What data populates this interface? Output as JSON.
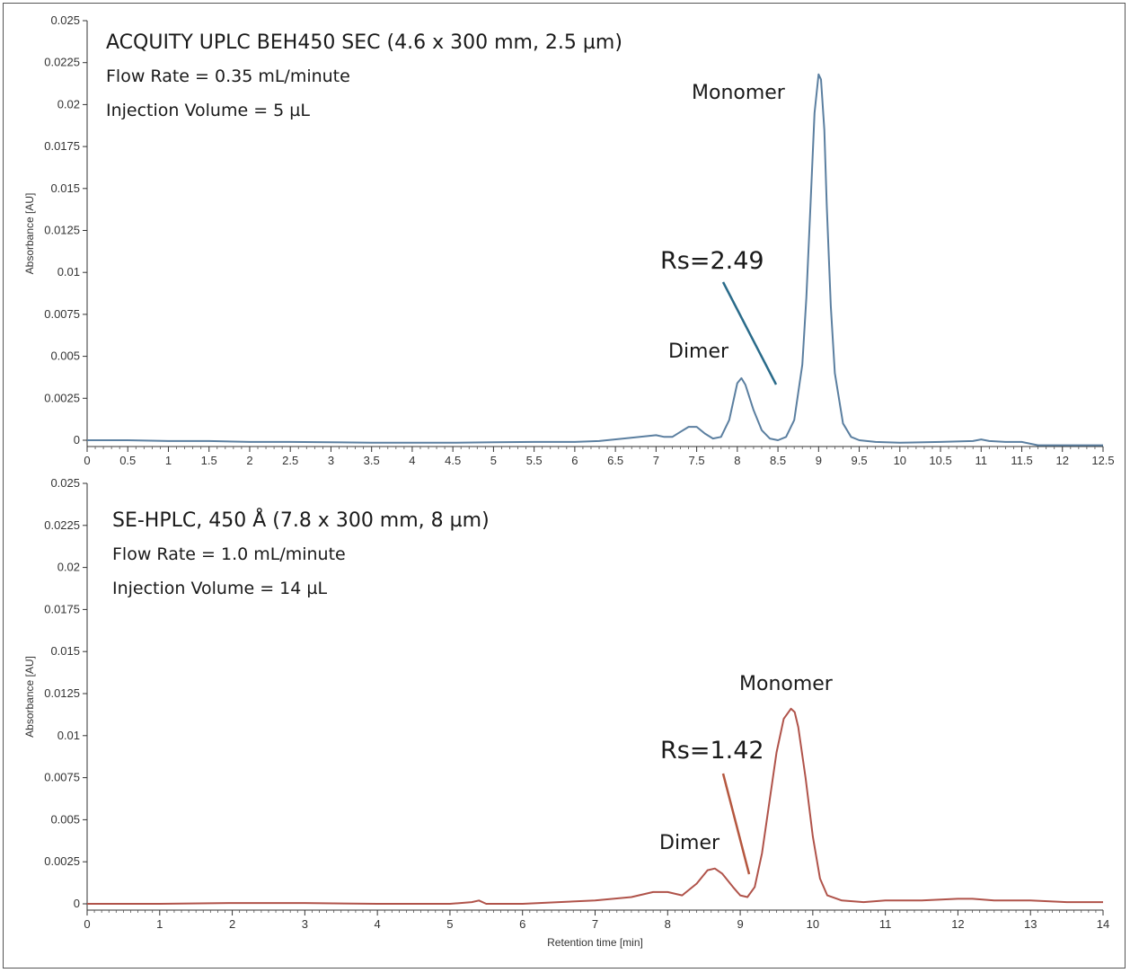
{
  "chart_data": [
    {
      "type": "line",
      "title": "ACQUITY UPLC BEH450 SEC (4.6 x 300 mm, 2.5 µm)",
      "info_lines": [
        "Flow Rate = 0.35 mL/minute",
        "Injection Volume = 5 µL"
      ],
      "xlabel": "",
      "ylabel": "Absorbance [AU]",
      "xlim": [
        0,
        12.5
      ],
      "ylim": [
        -0.0004,
        0.025
      ],
      "x_ticks": [
        "0",
        "0.5",
        "1",
        "1.5",
        "2",
        "2.5",
        "3",
        "3.5",
        "4",
        "4.5",
        "5",
        "5.5",
        "6",
        "6.5",
        "7",
        "7.5",
        "8",
        "8.5",
        "9",
        "9.5",
        "10",
        "10.5",
        "11",
        "11.5",
        "12",
        "12.5"
      ],
      "y_ticks": [
        "0",
        "0.0025",
        "0.005",
        "0.0075",
        "0.01",
        "0.0125",
        "0.015",
        "0.0175",
        "0.02",
        "0.0225",
        "0.025"
      ],
      "line_color": "#5b7fa0",
      "series": [
        {
          "x": [
            0,
            0.5,
            1,
            1.5,
            2,
            2.5,
            3,
            3.5,
            4,
            4.5,
            5,
            5.5,
            6,
            6.3,
            6.6,
            6.8,
            7.0,
            7.1,
            7.2,
            7.3,
            7.4,
            7.5,
            7.6,
            7.7,
            7.8,
            7.9,
            8.0,
            8.05,
            8.1,
            8.2,
            8.3,
            8.4,
            8.5,
            8.6,
            8.7,
            8.8,
            8.85,
            8.9,
            8.95,
            9.0,
            9.03,
            9.07,
            9.1,
            9.15,
            9.2,
            9.3,
            9.4,
            9.5,
            9.7,
            10.0,
            10.5,
            10.9,
            11.0,
            11.1,
            11.3,
            11.5,
            11.7,
            12.0,
            12.3,
            12.5
          ],
          "y": [
            0.0,
            0.0,
            -5e-05,
            -5e-05,
            -0.0001,
            -0.0001,
            -0.00012,
            -0.00015,
            -0.00015,
            -0.00015,
            -0.00012,
            -0.0001,
            -0.0001,
            -5e-05,
            0.0001,
            0.0002,
            0.0003,
            0.0002,
            0.0002,
            0.0005,
            0.0008,
            0.0008,
            0.0004,
            0.0001,
            0.0002,
            0.0012,
            0.0034,
            0.0037,
            0.0033,
            0.0018,
            0.0006,
            0.0001,
            0.0,
            0.0002,
            0.0012,
            0.0045,
            0.0085,
            0.014,
            0.0195,
            0.0218,
            0.0215,
            0.0185,
            0.014,
            0.008,
            0.004,
            0.001,
            0.0002,
            0.0,
            -0.0001,
            -0.00015,
            -0.0001,
            -5e-05,
            5e-05,
            -5e-05,
            -0.0001,
            -0.0001,
            -0.0003,
            -0.0003,
            -0.0003,
            -0.0003
          ]
        }
      ],
      "annotations": {
        "monomer": "Monomer",
        "dimer": "Dimer",
        "rs": "Rs=2.49"
      }
    },
    {
      "type": "line",
      "title": "SE-HPLC, 450 Å (7.8 x 300 mm, 8 µm)",
      "info_lines": [
        "Flow Rate = 1.0 mL/minute",
        "Injection Volume = 14 µL"
      ],
      "xlabel": "Retention time [min]",
      "ylabel": "Absorbance [AU]",
      "xlim": [
        0,
        14
      ],
      "ylim": [
        -0.0004,
        0.025
      ],
      "x_ticks": [
        "0",
        "1",
        "2",
        "3",
        "4",
        "5",
        "6",
        "7",
        "8",
        "9",
        "10",
        "11",
        "12",
        "13",
        "14"
      ],
      "y_ticks": [
        "0",
        "0.0025",
        "0.005",
        "0.0075",
        "0.01",
        "0.0125",
        "0.015",
        "0.0175",
        "0.02",
        "0.0225",
        "0.025"
      ],
      "line_color": "#b0534a",
      "series": [
        {
          "x": [
            0,
            1,
            2,
            3,
            4,
            5,
            5.3,
            5.4,
            5.5,
            6,
            6.5,
            7,
            7.5,
            7.8,
            8.0,
            8.2,
            8.4,
            8.55,
            8.65,
            8.75,
            8.9,
            9.0,
            9.1,
            9.2,
            9.3,
            9.4,
            9.5,
            9.6,
            9.7,
            9.75,
            9.8,
            9.9,
            10.0,
            10.1,
            10.2,
            10.4,
            10.7,
            11,
            11.5,
            12,
            12.2,
            12.5,
            13,
            13.5,
            14
          ],
          "y": [
            0.0,
            0.0,
            5e-05,
            5e-05,
            0.0,
            0.0,
            0.0001,
            0.0002,
            0.0,
            0.0,
            0.0001,
            0.0002,
            0.0004,
            0.0007,
            0.0007,
            0.0005,
            0.0012,
            0.002,
            0.0021,
            0.0018,
            0.001,
            0.0005,
            0.0004,
            0.001,
            0.003,
            0.006,
            0.009,
            0.011,
            0.0116,
            0.0114,
            0.0105,
            0.0075,
            0.004,
            0.0015,
            0.0005,
            0.0002,
            0.0001,
            0.0002,
            0.0002,
            0.0003,
            0.0003,
            0.0002,
            0.0002,
            0.0001,
            0.0001
          ]
        }
      ],
      "annotations": {
        "monomer": "Monomer",
        "dimer": "Dimer",
        "rs": "Rs=1.42"
      }
    }
  ]
}
